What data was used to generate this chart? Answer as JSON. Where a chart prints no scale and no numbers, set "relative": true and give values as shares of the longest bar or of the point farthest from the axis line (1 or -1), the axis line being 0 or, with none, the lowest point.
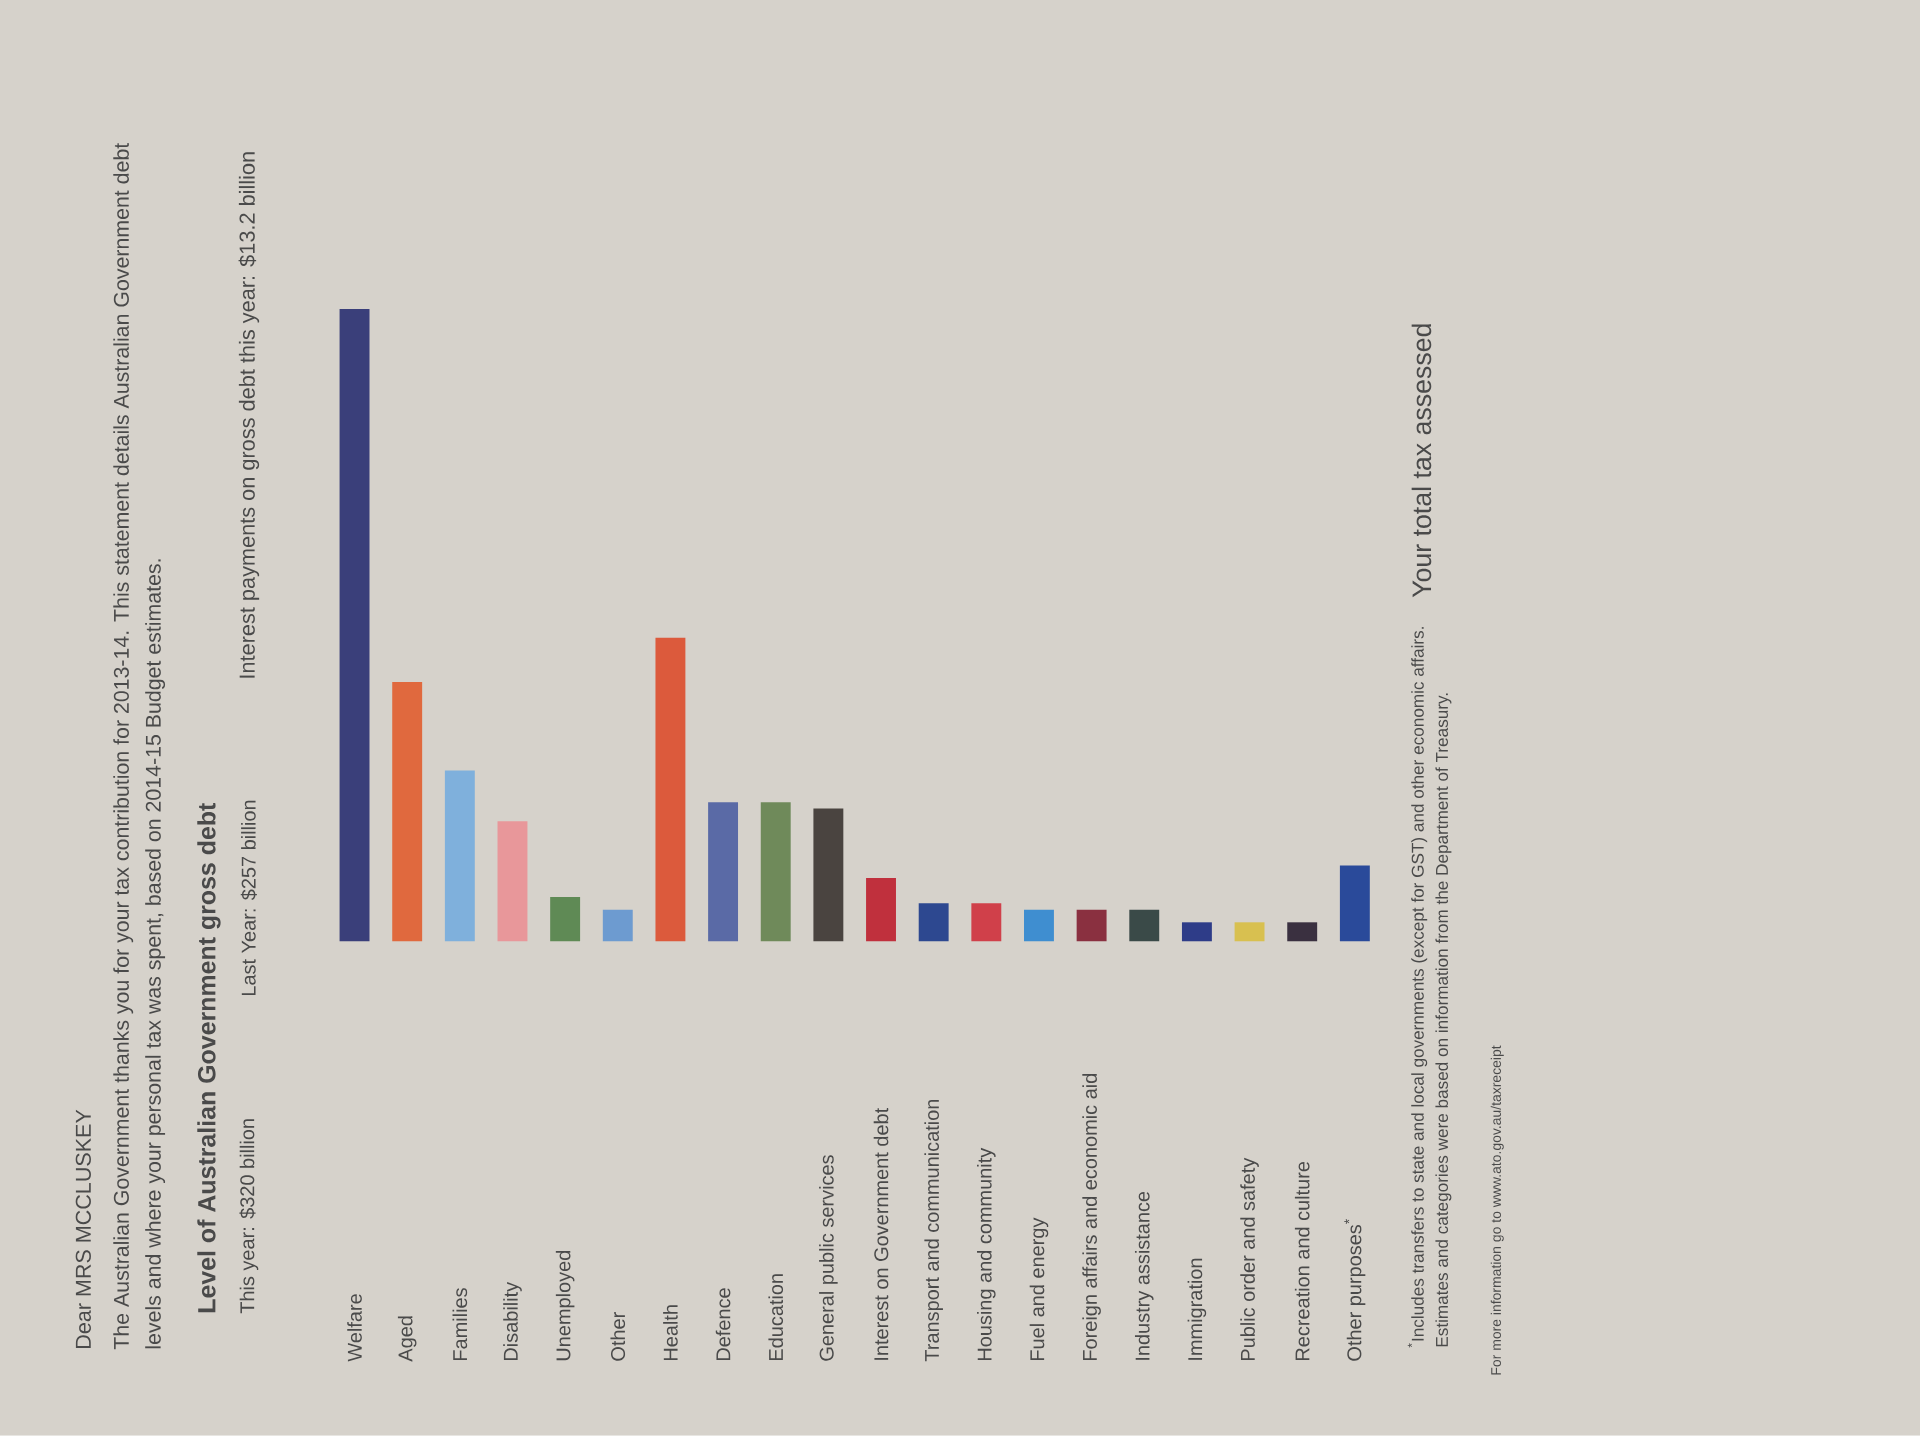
{
  "chart_data": {
    "type": "bar",
    "title": "Level of Australian Government gross debt",
    "relative": true,
    "categories": [
      "Welfare",
      "Aged",
      "Families",
      "Disability",
      "Unemployed",
      "Other",
      "Health",
      "Defence",
      "Education",
      "General public services",
      "Interest on Government debt",
      "Transport and communication",
      "Housing and community",
      "Fuel and energy",
      "Foreign affairs and economic aid",
      "Industry assistance",
      "Immigration",
      "Public order and safety",
      "Recreation and culture",
      "Other purposes$^{*}$"
    ],
    "values": [
      1,
      0.41,
      0.27,
      0.19,
      0.07,
      0.05,
      0.48,
      0.22,
      0.22,
      0.21,
      0.1,
      0.06,
      0.06,
      0.05,
      0.05,
      0.05,
      0.03,
      0.03,
      0.03,
      0.12
    ],
    "colors": [
      "#3a3f7a",
      "#e0693e",
      "#7fb0dc",
      "#e8979a",
      "#5f8a55",
      "#6d9bd0",
      "#dc5a3c",
      "#5a6aa6",
      "#6f8a5a",
      "#4a4440",
      "#c0303d",
      "#2d4890",
      "#d0404a",
      "#3f8ed0",
      "#8a3040",
      "#3a4a48",
      "#2e3c88",
      "#d8c050",
      "#3a3040",
      "#2a4a9a"
    ],
    "annotations": [
      "Dear MRS MCCLUSKEY",
      "The Australian Government thanks you for your tax contribution for 2013-14. This statement details Australian Government debt",
      "levels and where your personal tax was spent, based on 2014-15 Budget estimates.",
      "This year: $320 billion",
      "Last Year: $257 billion",
      "Interest payments on gross debt this year: $13.2 billion",
      "$^{*}$Includes transfers to state and local governments (except for GST) and other economic affairs.",
      "Estimates and categories were based on information from the Department of Treasury.",
      "Your total tax assessed",
      "For more information go to www.ato.gov.au/taxreceipt"
    ]
  }
}
